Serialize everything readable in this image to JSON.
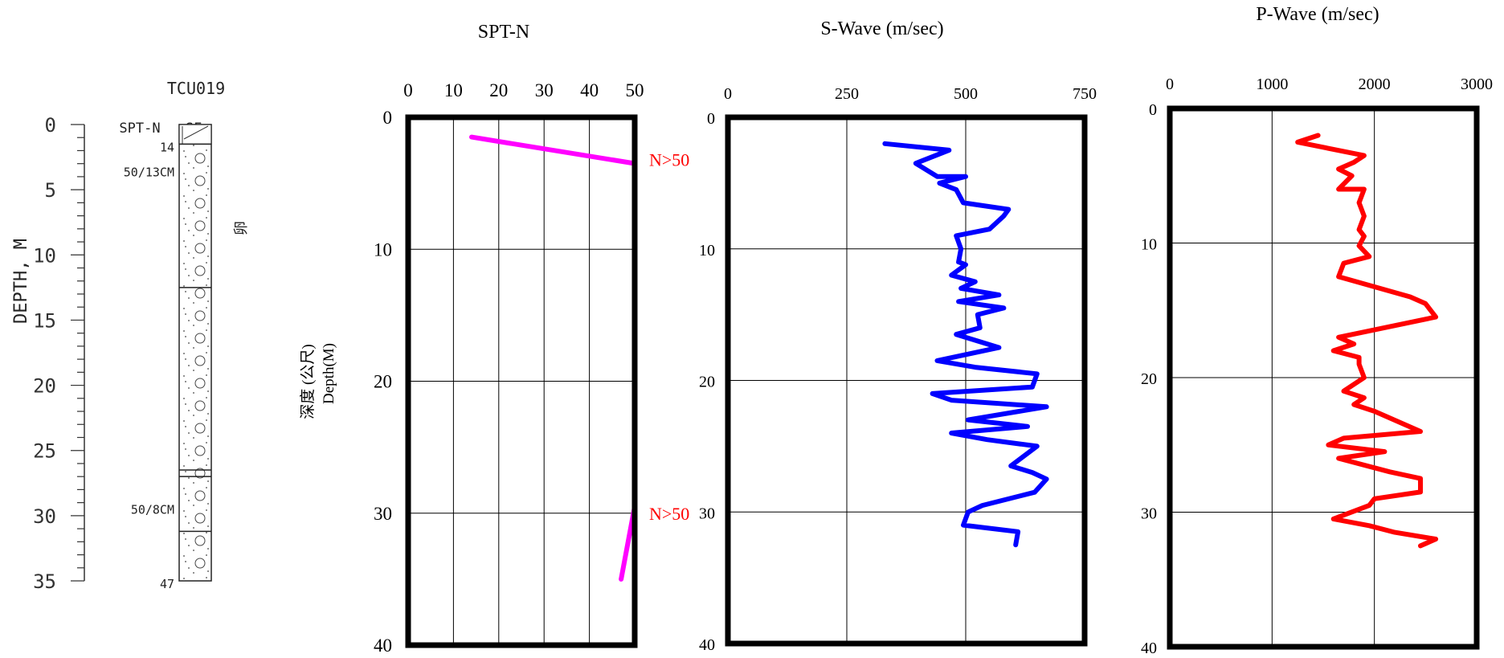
{
  "borehole": {
    "id": "TCU019",
    "depth_label": "DEPTH, M",
    "depth_ticks": [
      0,
      5,
      10,
      15,
      20,
      25,
      30,
      35
    ],
    "column_headers": [
      "SPT-N",
      "SF"
    ],
    "spt_annotations": [
      {
        "text": "14",
        "depth": 1.7
      },
      {
        "text": "50/13CM",
        "depth": 3.6
      },
      {
        "text": "50/8CM",
        "depth": 29.5
      },
      {
        "text": "47",
        "depth": 35.2
      }
    ],
    "layer_boundaries": [
      1.5,
      12.5,
      26.5,
      27.0,
      31.2
    ],
    "side_char": "卵"
  },
  "shared_depth_label": {
    "chinese": "深度 (公尺)",
    "english": "Depth(M)"
  },
  "colors": {
    "spt": "#ff00ff",
    "swave": "#0000ff",
    "pwave": "#ff0000",
    "annotation": "#ff0000",
    "frame": "#000000"
  },
  "chart_data": [
    {
      "type": "line",
      "title": "SPT-N",
      "xlim": [
        0,
        50
      ],
      "xticks": [
        0,
        10,
        20,
        30,
        40,
        50
      ],
      "ylim": [
        0,
        40
      ],
      "yticks": [
        0,
        10,
        20,
        30,
        40
      ],
      "grid": true,
      "series": [
        {
          "color": "#ff00ff",
          "x": [
            14,
            50,
            50,
            50,
            47
          ],
          "y": [
            1.5,
            3.5,
            20,
            29.5,
            35
          ]
        }
      ],
      "annotations": [
        {
          "text": "N>50",
          "x": 50,
          "y": 3.2
        },
        {
          "text": "N>50",
          "x": 50,
          "y": 30.0
        }
      ]
    },
    {
      "type": "line",
      "title": "S-Wave (m/sec)",
      "xlim": [
        0,
        750
      ],
      "xticks": [
        0,
        250,
        500,
        750
      ],
      "ylim": [
        0,
        40
      ],
      "yticks": [
        0,
        10,
        20,
        30,
        40
      ],
      "grid": true,
      "series": [
        {
          "color": "#0000ff",
          "x": [
            330,
            465,
            395,
            440,
            500,
            445,
            480,
            495,
            590,
            580,
            550,
            480,
            490,
            485,
            500,
            470,
            520,
            490,
            570,
            485,
            580,
            525,
            530,
            480,
            570,
            440,
            520,
            650,
            640,
            430,
            470,
            670,
            505,
            630,
            470,
            545,
            650,
            595,
            640,
            670,
            645,
            535,
            505,
            495,
            610,
            605
          ],
          "y": [
            2,
            2.5,
            3.5,
            4.5,
            4.5,
            5,
            5.5,
            6.5,
            7,
            7.5,
            8.5,
            9,
            10,
            11,
            11.2,
            12,
            12.5,
            13,
            13.5,
            14,
            14.5,
            15,
            16,
            16.5,
            17.5,
            18.5,
            19,
            19.5,
            20.5,
            21,
            21.5,
            22,
            23,
            23.5,
            24,
            24.5,
            25,
            26.5,
            27,
            27.5,
            28.5,
            29.5,
            30,
            31,
            31.5,
            32.5
          ]
        }
      ]
    },
    {
      "type": "line",
      "title": "P-Wave (m/sec)",
      "xlim": [
        0,
        3000
      ],
      "xticks": [
        0,
        1000,
        2000,
        3000
      ],
      "ylim": [
        0,
        40
      ],
      "yticks": [
        0,
        10,
        20,
        30,
        40
      ],
      "grid": true,
      "series": [
        {
          "color": "#ff0000",
          "x": [
            1450,
            1250,
            1900,
            1800,
            1650,
            1780,
            1650,
            1900,
            1850,
            1900,
            1850,
            1900,
            1850,
            1950,
            1700,
            1650,
            2350,
            2500,
            2600,
            1650,
            1800,
            1600,
            1850,
            1850,
            1900,
            1700,
            1900,
            1800,
            2000,
            2450,
            1700,
            1550,
            2100,
            1650,
            2150,
            2450,
            2450,
            2000,
            1950,
            1600,
            1950,
            2200,
            2600,
            2450
          ],
          "y": [
            2,
            2.5,
            3.5,
            4,
            4.5,
            5,
            6,
            6,
            7,
            8,
            9,
            9.5,
            10.2,
            11,
            11.5,
            12.5,
            14,
            14.5,
            15.5,
            17,
            17.5,
            18,
            18.5,
            19,
            20,
            21,
            21.5,
            22,
            22.5,
            24,
            24.5,
            25,
            25.5,
            26,
            27,
            27.5,
            28.5,
            29,
            29.5,
            30.5,
            31,
            31.5,
            32,
            32.5
          ]
        }
      ]
    }
  ]
}
